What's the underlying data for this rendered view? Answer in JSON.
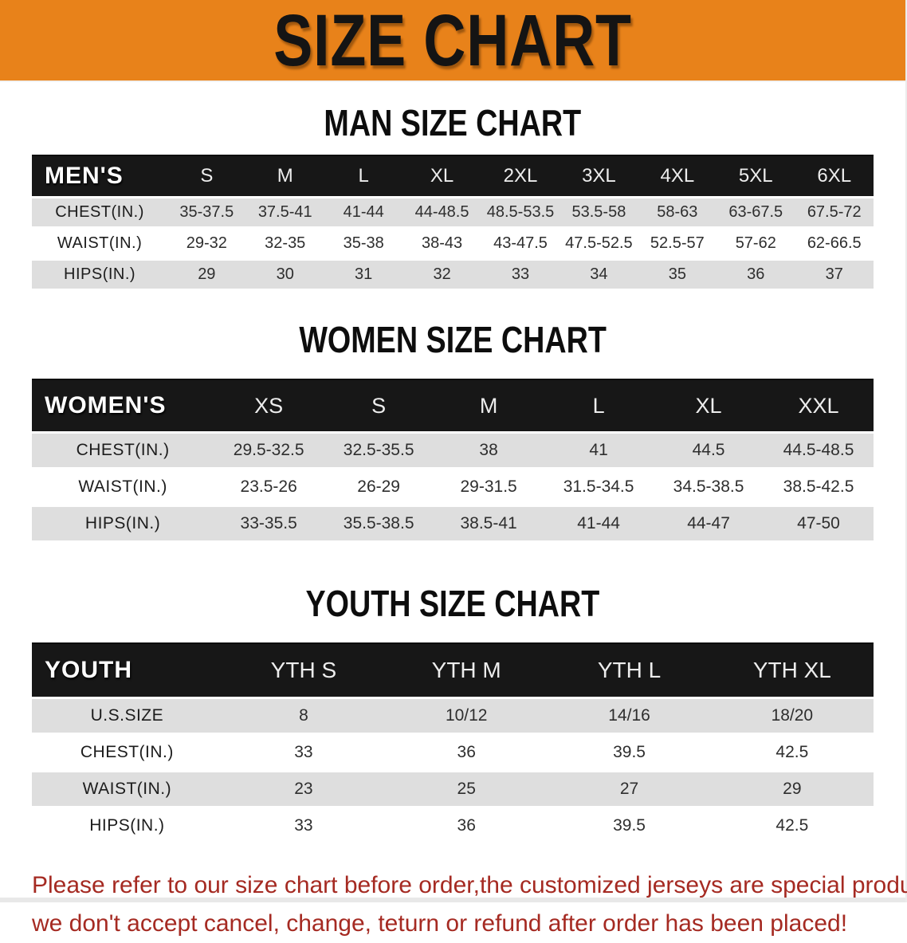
{
  "banner": {
    "title": "SIZE CHART"
  },
  "colors": {
    "banner_bg": "#E8821A",
    "table_header_bg": "#171717",
    "row_gray": "#DEDEDE",
    "note_red": "#A52A22"
  },
  "sections": [
    {
      "id": "men",
      "heading": "MAN SIZE CHART",
      "corner_label": "MEN'S",
      "columns": [
        "S",
        "M",
        "L",
        "XL",
        "2XL",
        "3XL",
        "4XL",
        "5XL",
        "6XL"
      ],
      "rows": [
        {
          "label": "CHEST(IN.)",
          "values": [
            "35-37.5",
            "37.5-41",
            "41-44",
            "44-48.5",
            "48.5-53.5",
            "53.5-58",
            "58-63",
            "63-67.5",
            "67.5-72"
          ]
        },
        {
          "label": "WAIST(IN.)",
          "values": [
            "29-32",
            "32-35",
            "35-38",
            "38-43",
            "43-47.5",
            "47.5-52.5",
            "52.5-57",
            "57-62",
            "62-66.5"
          ]
        },
        {
          "label": "HIPS(IN.)",
          "values": [
            "29",
            "30",
            "31",
            "32",
            "33",
            "34",
            "35",
            "36",
            "37"
          ]
        }
      ]
    },
    {
      "id": "women",
      "heading": "WOMEN SIZE CHART",
      "corner_label": "WOMEN'S",
      "columns": [
        "XS",
        "S",
        "M",
        "L",
        "XL",
        "XXL"
      ],
      "rows": [
        {
          "label": "CHEST(IN.)",
          "values": [
            "29.5-32.5",
            "32.5-35.5",
            "38",
            "41",
            "44.5",
            "44.5-48.5"
          ]
        },
        {
          "label": "WAIST(IN.)",
          "values": [
            "23.5-26",
            "26-29",
            "29-31.5",
            "31.5-34.5",
            "34.5-38.5",
            "38.5-42.5"
          ]
        },
        {
          "label": "HIPS(IN.)",
          "values": [
            "33-35.5",
            "35.5-38.5",
            "38.5-41",
            "41-44",
            "44-47",
            "47-50"
          ]
        }
      ]
    },
    {
      "id": "youth",
      "heading": "YOUTH SIZE CHART",
      "corner_label": "YOUTH",
      "columns": [
        "YTH S",
        "YTH M",
        "YTH L",
        "YTH XL"
      ],
      "rows": [
        {
          "label": "U.S.SIZE",
          "values": [
            "8",
            "10/12",
            "14/16",
            "18/20"
          ]
        },
        {
          "label": "CHEST(IN.)",
          "values": [
            "33",
            "36",
            "39.5",
            "42.5"
          ]
        },
        {
          "label": "WAIST(IN.)",
          "values": [
            "23",
            "25",
            "27",
            "29"
          ]
        },
        {
          "label": "HIPS(IN.)",
          "values": [
            "33",
            "36",
            "39.5",
            "42.5"
          ]
        }
      ]
    }
  ],
  "note": {
    "lines": [
      "Please refer to our size chart before order,the customized jerseys are special products,",
      "we don't accept cancel, change, teturn or refund after order has been placed!"
    ]
  }
}
